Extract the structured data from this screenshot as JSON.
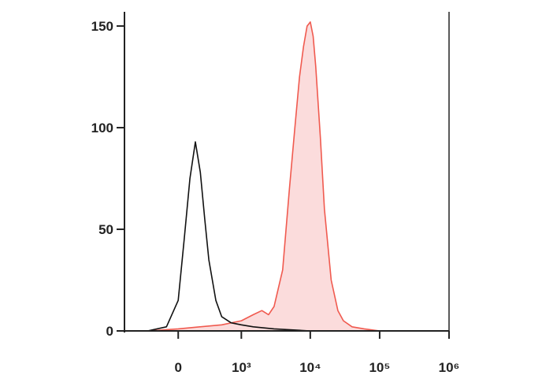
{
  "chart_data": {
    "type": "histogram-overlay",
    "xscale": "asinh",
    "xcofactor": 250,
    "xlim": [
      -900,
      1000000
    ],
    "ylim": [
      0,
      157
    ],
    "xticks": [
      0,
      {
        "value": 1000,
        "label": "10³"
      },
      {
        "value": 10000,
        "label": "10⁴"
      },
      {
        "value": 100000,
        "label": "10⁵"
      },
      {
        "value": 1000000,
        "label": "10⁶"
      }
    ],
    "yticks": [
      0,
      50,
      100,
      150
    ],
    "series": [
      {
        "color": "#f05a4f",
        "fill": "#fbdcdc",
        "x": [
          -300,
          0,
          500,
          1000,
          1500,
          2000,
          2500,
          3000,
          4000,
          5000,
          6000,
          7000,
          8000,
          9000,
          10000,
          11000,
          12000,
          14000,
          16000,
          20000,
          25000,
          30000,
          40000,
          60000,
          100000,
          1000000
        ],
        "values": [
          0,
          1,
          3,
          5,
          8,
          10,
          8,
          12,
          30,
          70,
          100,
          125,
          140,
          150,
          152,
          145,
          130,
          95,
          60,
          25,
          10,
          5,
          2,
          1,
          0,
          0
        ]
      },
      {
        "color": "#111111",
        "x": [
          -300,
          -100,
          0,
          50,
          100,
          150,
          200,
          250,
          300,
          400,
          500,
          700,
          1000,
          1500,
          3000,
          10000,
          100000,
          1000000
        ],
        "values": [
          0,
          2,
          15,
          45,
          75,
          93,
          78,
          55,
          35,
          15,
          7,
          4,
          3,
          2,
          1,
          0,
          0,
          0
        ]
      }
    ]
  }
}
